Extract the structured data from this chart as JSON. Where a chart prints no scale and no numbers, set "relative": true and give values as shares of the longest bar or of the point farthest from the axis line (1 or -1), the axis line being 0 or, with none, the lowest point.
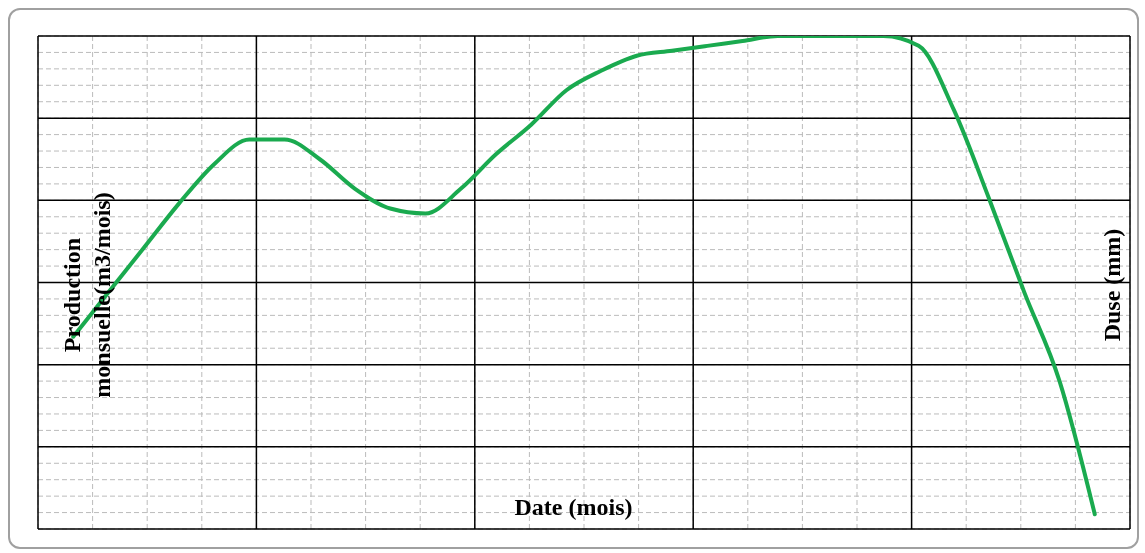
{
  "chart_data": {
    "type": "line",
    "relative": true,
    "xlabel": "Date (mois)",
    "ylabel": "Production monsuelle(m3/mois)",
    "y2label": "Duse (mm)",
    "grid": true,
    "categories": [
      null,
      null,
      null,
      null,
      null,
      null,
      null,
      null,
      null,
      null,
      null,
      null,
      null,
      null,
      null,
      null,
      null,
      null,
      null,
      null,
      null,
      null,
      null,
      null,
      null,
      null,
      null,
      null,
      null,
      null
    ],
    "series": [
      {
        "color": "#1aaa4f",
        "values": [
          0.39,
          0.48,
          0.57,
          0.66,
          0.74,
          0.79,
          0.79,
          0.75,
          0.69,
          0.65,
          0.64,
          0.69,
          0.76,
          0.82,
          0.89,
          0.93,
          0.96,
          0.97,
          0.98,
          0.99,
          1,
          1,
          1,
          1,
          0.98,
          0.85,
          0.67,
          0.48,
          0.3,
          0.03
        ]
      }
    ]
  }
}
